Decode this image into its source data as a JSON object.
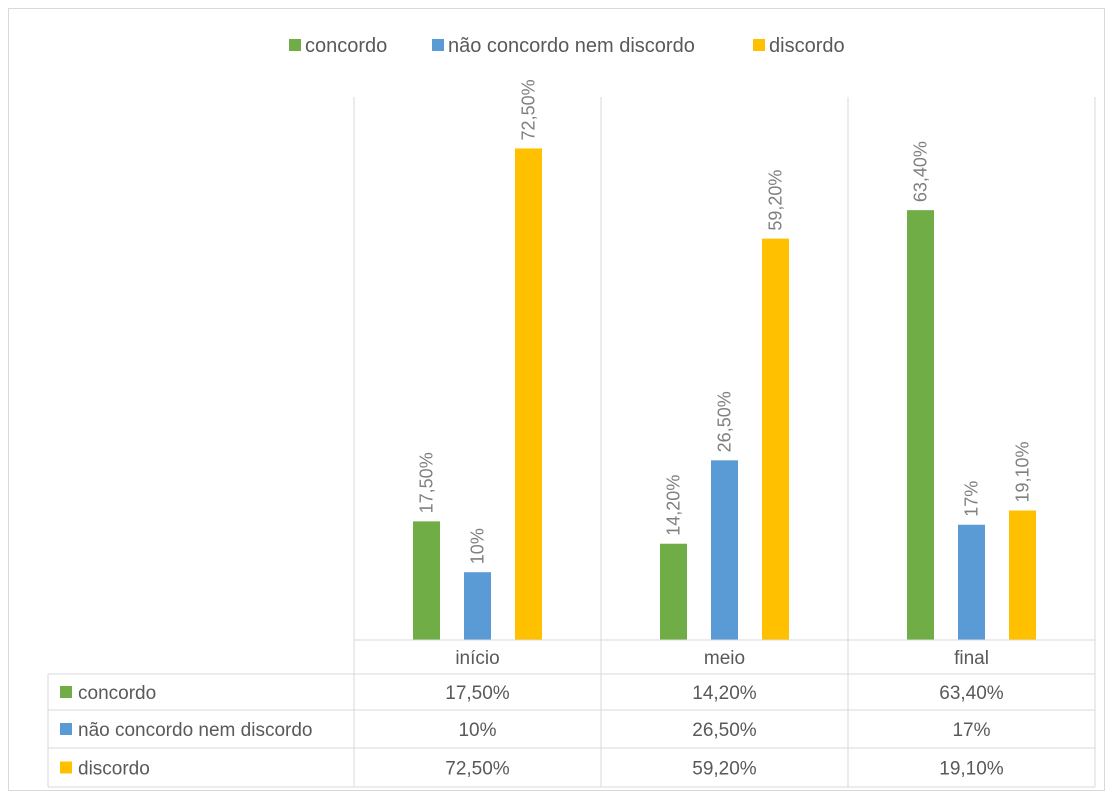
{
  "chart_data": {
    "type": "bar",
    "categories": [
      "início",
      "meio",
      "final"
    ],
    "series": [
      {
        "name": "concordo",
        "color": "#70ad47",
        "values": [
          17.5,
          14.2,
          63.4
        ],
        "labels": [
          "17,50%",
          "14,20%",
          "63,40%"
        ]
      },
      {
        "name": "não concordo nem discordo",
        "color": "#5b9bd5",
        "values": [
          10,
          26.5,
          17
        ],
        "labels": [
          "10%",
          "26,50%",
          "17%"
        ]
      },
      {
        "name": "discordo",
        "color": "#ffc000",
        "values": [
          72.5,
          59.2,
          19.1
        ],
        "labels": [
          "72,50%",
          "59,20%",
          "19,10%"
        ]
      }
    ],
    "ylim": [
      0,
      80
    ],
    "legend_position": "top",
    "grid": false,
    "data_table": true
  }
}
